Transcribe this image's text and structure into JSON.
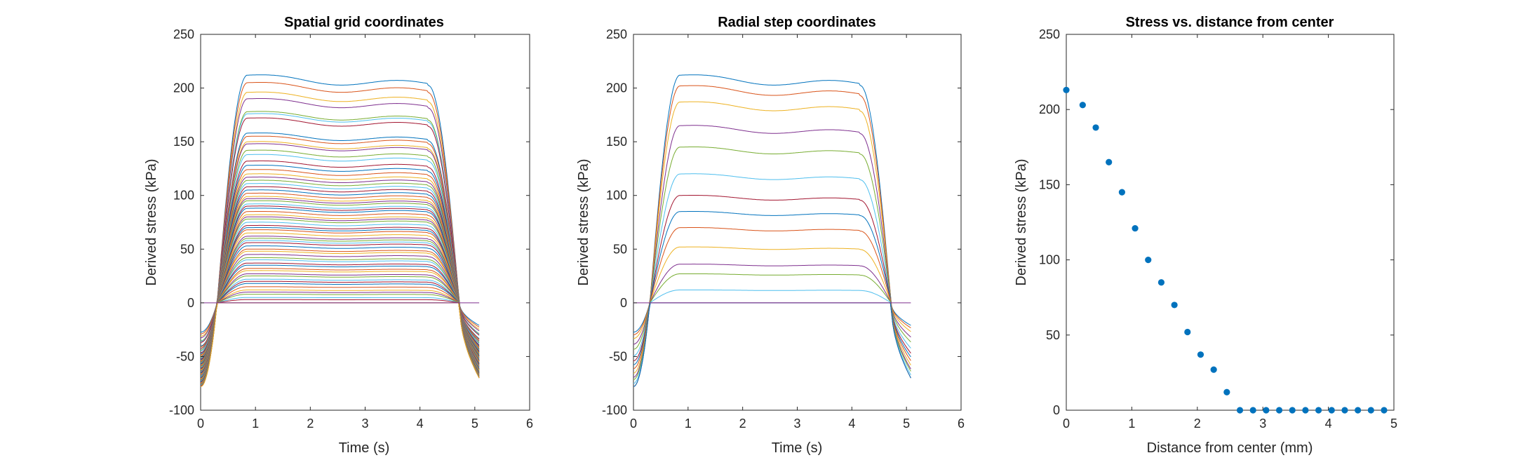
{
  "chart_data": [
    {
      "type": "line",
      "title": "Spatial grid coordinates",
      "xlabel": "Time (s)",
      "ylabel": "Derived stress (kPa)",
      "xlim": [
        0,
        6
      ],
      "ylim": [
        -100,
        250
      ],
      "xticks": [
        0,
        1,
        2,
        3,
        4,
        5,
        6
      ],
      "yticks": [
        -100,
        -50,
        0,
        50,
        100,
        150,
        200,
        250
      ],
      "plateaus": [
        212,
        205,
        196,
        190,
        178,
        176,
        172,
        158,
        155,
        150,
        148,
        142,
        138,
        132,
        128,
        124,
        120,
        117,
        114,
        111,
        108,
        105,
        102,
        99,
        97,
        95,
        92,
        90,
        88,
        85,
        82,
        80,
        78,
        75,
        72,
        70,
        68,
        65,
        62,
        60,
        58,
        56,
        53,
        50,
        48,
        45,
        42,
        40,
        37,
        35,
        32,
        30,
        27,
        25,
        22,
        20,
        18,
        15,
        12,
        10,
        8,
        5,
        3,
        0,
        0,
        0
      ],
      "pre_dip_min": -78,
      "post_dip_min": -70
    },
    {
      "type": "line",
      "title": "Radial step coordinates",
      "xlabel": "Time (s)",
      "ylabel": "Derived stress (kPa)",
      "xlim": [
        0,
        6
      ],
      "ylim": [
        -100,
        250
      ],
      "xticks": [
        0,
        1,
        2,
        3,
        4,
        5,
        6
      ],
      "yticks": [
        -100,
        -50,
        0,
        50,
        100,
        150,
        200,
        250
      ],
      "plateaus": [
        212,
        202,
        187,
        165,
        145,
        120,
        100,
        85,
        70,
        52,
        36,
        27,
        12,
        0,
        0
      ],
      "pre_dip_min": -78,
      "post_dip_min": -70
    },
    {
      "type": "scatter",
      "title": "Stress vs. distance from center",
      "xlabel": "Distance from center (mm)",
      "ylabel": "Derived stress (kPa)",
      "xlim": [
        0,
        5
      ],
      "ylim": [
        0,
        250
      ],
      "xticks": [
        0,
        1,
        2,
        3,
        4,
        5
      ],
      "yticks": [
        0,
        50,
        100,
        150,
        200,
        250
      ],
      "x": [
        0,
        0.25,
        0.45,
        0.65,
        0.85,
        1.05,
        1.25,
        1.45,
        1.65,
        1.85,
        2.05,
        2.25,
        2.45,
        2.65,
        2.85,
        3.05,
        3.25,
        3.45,
        3.65,
        3.85,
        4.05,
        4.25,
        4.45,
        4.65,
        4.85
      ],
      "y": [
        213,
        203,
        188,
        165,
        145,
        121,
        100,
        85,
        70,
        52,
        37,
        27,
        12,
        0,
        0,
        0,
        0,
        0,
        0,
        0,
        0,
        0,
        0,
        0,
        0
      ],
      "marker_color": "#0072BD"
    }
  ],
  "colors": [
    "#0072BD",
    "#D95319",
    "#EDB120",
    "#7E2F8E",
    "#77AC30",
    "#4DBEEE",
    "#A2142F"
  ]
}
